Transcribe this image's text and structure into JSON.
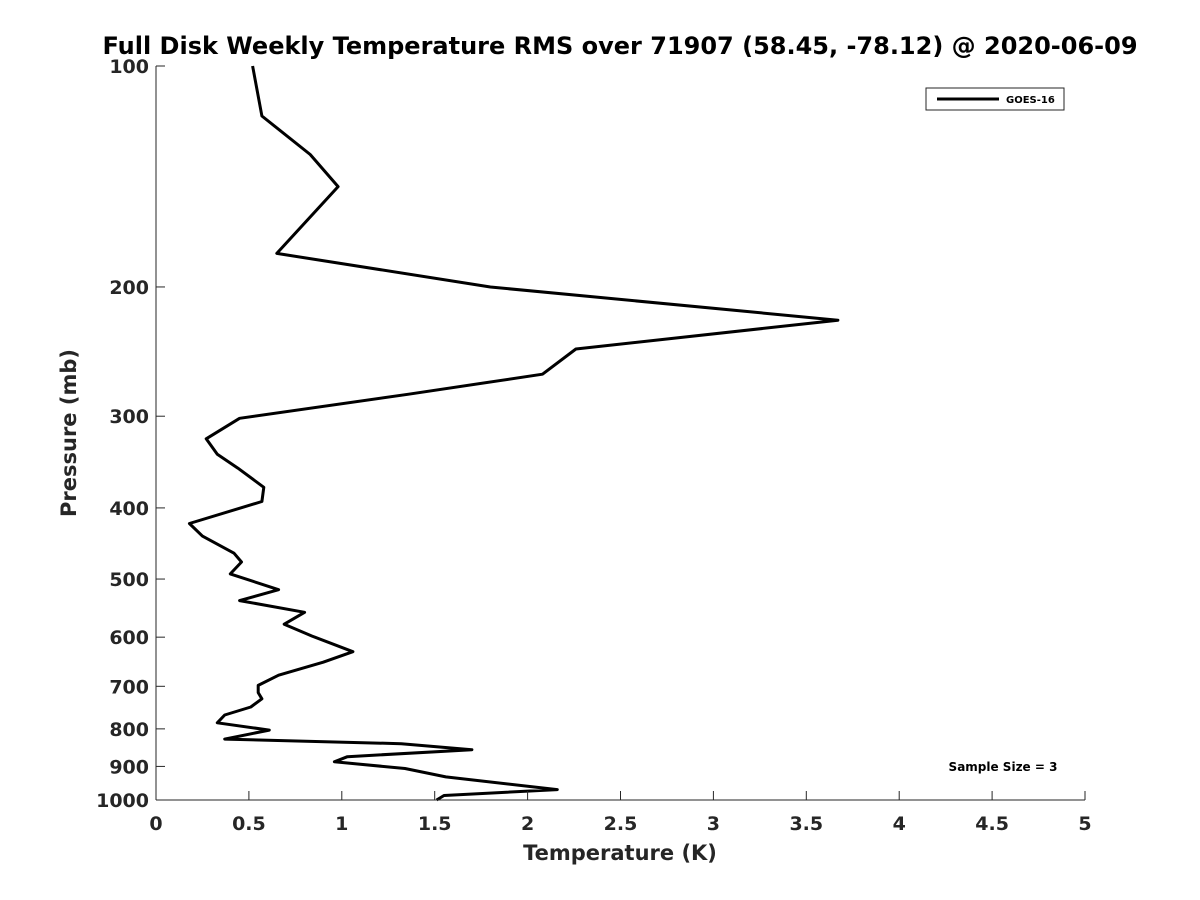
{
  "chart_data": {
    "type": "line",
    "title": "Full Disk Weekly Temperature RMS over 71907 (58.45, -78.12) @ 2020-06-09",
    "xlabel": "Temperature (K)",
    "ylabel": "Pressure (mb)",
    "xlim": [
      0,
      5
    ],
    "ylim": [
      100,
      1000
    ],
    "y_scale": "log",
    "y_reversed": true,
    "x_ticks": [
      0,
      0.5,
      1,
      1.5,
      2,
      2.5,
      3,
      3.5,
      4,
      4.5,
      5
    ],
    "x_tick_labels": [
      "0",
      "0.5",
      "1",
      "1.5",
      "2",
      "2.5",
      "3",
      "3.5",
      "4",
      "4.5",
      "5"
    ],
    "y_ticks": [
      100,
      200,
      300,
      400,
      500,
      600,
      700,
      800,
      900,
      1000
    ],
    "y_tick_labels": [
      "100",
      "200",
      "300",
      "400",
      "500",
      "600",
      "700",
      "800",
      "900",
      "1000"
    ],
    "grid": false,
    "legend_position": "top-right",
    "annotation": "Sample Size = 3",
    "series": [
      {
        "name": "GOES-16",
        "color": "#000000",
        "x": [
          0.52,
          0.57,
          0.83,
          0.98,
          0.65,
          1.8,
          3.67,
          2.26,
          2.08,
          1.36,
          0.45,
          0.27,
          0.33,
          0.44,
          0.58,
          0.57,
          0.18,
          0.25,
          0.42,
          0.46,
          0.4,
          0.66,
          0.45,
          0.8,
          0.69,
          0.84,
          1.06,
          0.9,
          0.66,
          0.55,
          0.55,
          0.57,
          0.51,
          0.37,
          0.33,
          0.61,
          0.37,
          1.32,
          1.7,
          1.03,
          0.96,
          1.34,
          1.56,
          2.16,
          1.55,
          1.51
        ],
        "y": [
          100,
          117,
          132,
          146,
          180,
          200,
          222,
          243,
          263,
          280,
          302,
          322,
          338,
          353,
          375,
          392,
          420,
          437,
          461,
          474,
          492,
          517,
          535,
          555,
          576,
          598,
          628,
          649,
          676,
          698,
          714,
          728,
          747,
          766,
          785,
          803,
          826,
          838,
          854,
          873,
          887,
          906,
          930,
          968,
          986,
          1000
        ]
      }
    ]
  }
}
